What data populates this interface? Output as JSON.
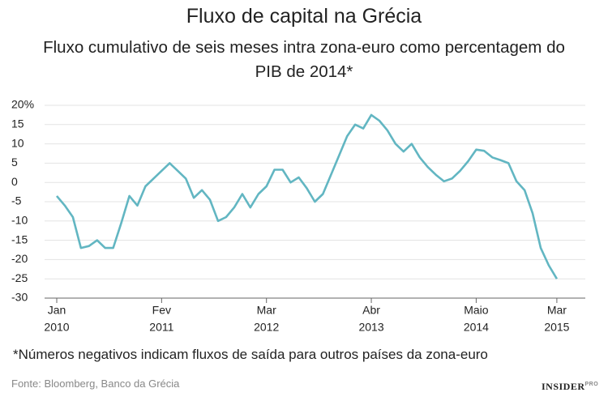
{
  "chart_data": {
    "type": "line",
    "title": "Fluxo de capital na Grécia",
    "subtitle": "Fluxo cumulativo de seis meses intra zona-euro como percentagem do PIB de 2014*",
    "footnote": "*Números negativos indicam fluxos de saída para outros países da zona-euro",
    "source": "Fonte: Bloomberg, Banco da Grécia",
    "logo": "INSIDER",
    "logo_suffix": "PRO",
    "x": [
      "2010-01",
      "2010-02",
      "2010-03",
      "2010-04",
      "2010-05",
      "2010-06",
      "2010-07",
      "2010-08",
      "2010-09",
      "2010-10",
      "2010-11",
      "2010-12",
      "2011-01",
      "2011-02",
      "2011-03",
      "2011-04",
      "2011-05",
      "2011-06",
      "2011-07",
      "2011-08",
      "2011-09",
      "2011-10",
      "2011-11",
      "2011-12",
      "2012-01",
      "2012-02",
      "2012-03",
      "2012-04",
      "2012-05",
      "2012-06",
      "2012-07",
      "2012-08",
      "2012-09",
      "2012-10",
      "2012-11",
      "2012-12",
      "2013-01",
      "2013-02",
      "2013-03",
      "2013-04",
      "2013-05",
      "2013-06",
      "2013-07",
      "2013-08",
      "2013-09",
      "2013-10",
      "2013-11",
      "2013-12",
      "2014-01",
      "2014-02",
      "2014-03",
      "2014-04",
      "2014-05",
      "2014-06",
      "2014-07",
      "2014-08",
      "2014-09",
      "2014-10",
      "2014-11",
      "2014-12",
      "2015-01",
      "2015-02",
      "2015-03"
    ],
    "series": [
      {
        "color": "#62b6c2",
        "values": [
          -3.5,
          -6,
          -9,
          -17,
          -16.5,
          -15,
          -17,
          -17,
          -10.5,
          -3.5,
          -6,
          -1,
          1,
          3,
          5,
          3,
          1,
          -4,
          -2,
          -4.5,
          -10,
          -9,
          -6.5,
          -3,
          -6.5,
          -3,
          -1,
          3.3,
          3.3,
          0,
          1.3,
          -1.5,
          -5,
          -3,
          2,
          7,
          12,
          15,
          14,
          17.5,
          16,
          13.5,
          10,
          8,
          10,
          6.5,
          4,
          2,
          0.3,
          1,
          3,
          5.5,
          8.5,
          8.2,
          6.5,
          5.8,
          5,
          0.3,
          -2,
          -8,
          -17,
          -21.5,
          -25
        ]
      }
    ],
    "xticks": [
      {
        "value": "2010-01",
        "label": [
          "Jan",
          "2010"
        ]
      },
      {
        "value": "2011-02",
        "label": [
          "Fev",
          "2011"
        ]
      },
      {
        "value": "2012-03",
        "label": [
          "Mar",
          "2012"
        ]
      },
      {
        "value": "2013-04",
        "label": [
          "Abr",
          "2013"
        ]
      },
      {
        "value": "2014-05",
        "label": [
          "Maio",
          "2014"
        ]
      },
      {
        "value": "2015-03",
        "label": [
          "Mar",
          "2015"
        ]
      }
    ],
    "ylim": [
      -30,
      20
    ],
    "yticks": [
      -30,
      -25,
      -20,
      -15,
      -10,
      -5,
      0,
      5,
      10,
      15,
      {
        "value": 20,
        "label": "20%"
      }
    ],
    "grid": true
  }
}
